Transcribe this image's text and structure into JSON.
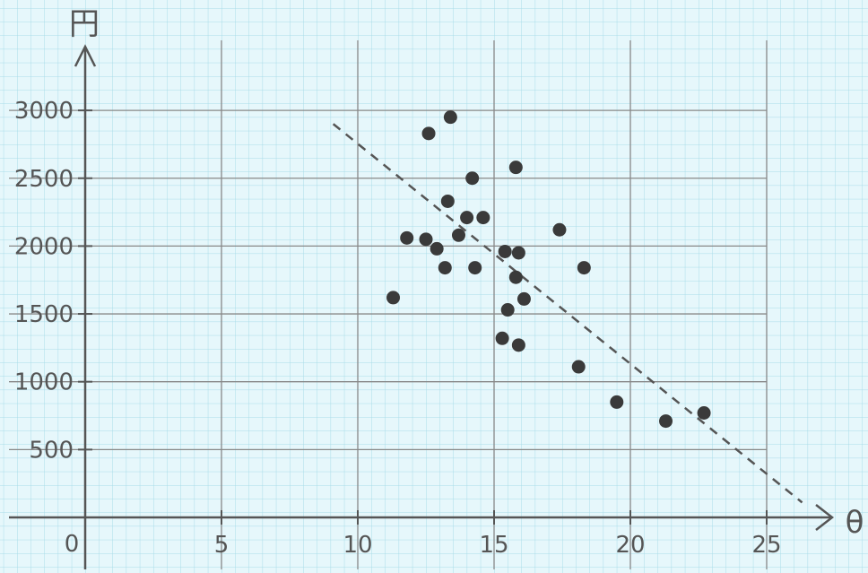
{
  "chart_data": {
    "type": "scatter",
    "title": "",
    "xlabel": "θ",
    "ylabel": "円",
    "xlim": [
      0,
      27
    ],
    "ylim": [
      0,
      3300
    ],
    "x_ticks": [
      5,
      10,
      15,
      20,
      25
    ],
    "y_ticks": [
      500,
      1000,
      1500,
      2000,
      2500,
      3000
    ],
    "origin_label": "0",
    "grid": true,
    "points": [
      {
        "x": 11.3,
        "y": 1620
      },
      {
        "x": 11.8,
        "y": 2060
      },
      {
        "x": 12.5,
        "y": 2050
      },
      {
        "x": 12.6,
        "y": 2830
      },
      {
        "x": 12.9,
        "y": 1980
      },
      {
        "x": 13.2,
        "y": 1840
      },
      {
        "x": 13.3,
        "y": 2330
      },
      {
        "x": 13.4,
        "y": 2950
      },
      {
        "x": 13.7,
        "y": 2080
      },
      {
        "x": 14.0,
        "y": 2210
      },
      {
        "x": 14.2,
        "y": 2500
      },
      {
        "x": 14.3,
        "y": 1840
      },
      {
        "x": 14.6,
        "y": 2210
      },
      {
        "x": 15.3,
        "y": 1320
      },
      {
        "x": 15.4,
        "y": 1960
      },
      {
        "x": 15.5,
        "y": 1530
      },
      {
        "x": 15.8,
        "y": 1770
      },
      {
        "x": 15.8,
        "y": 2580
      },
      {
        "x": 15.9,
        "y": 1270
      },
      {
        "x": 15.9,
        "y": 1950
      },
      {
        "x": 16.1,
        "y": 1610
      },
      {
        "x": 17.4,
        "y": 2120
      },
      {
        "x": 18.1,
        "y": 1110
      },
      {
        "x": 18.3,
        "y": 1840
      },
      {
        "x": 19.5,
        "y": 850
      },
      {
        "x": 21.3,
        "y": 710
      },
      {
        "x": 22.7,
        "y": 770
      }
    ],
    "trend_line": {
      "x1": 9.1,
      "y1": 2900,
      "x2": 26.3,
      "y2": 110
    }
  }
}
